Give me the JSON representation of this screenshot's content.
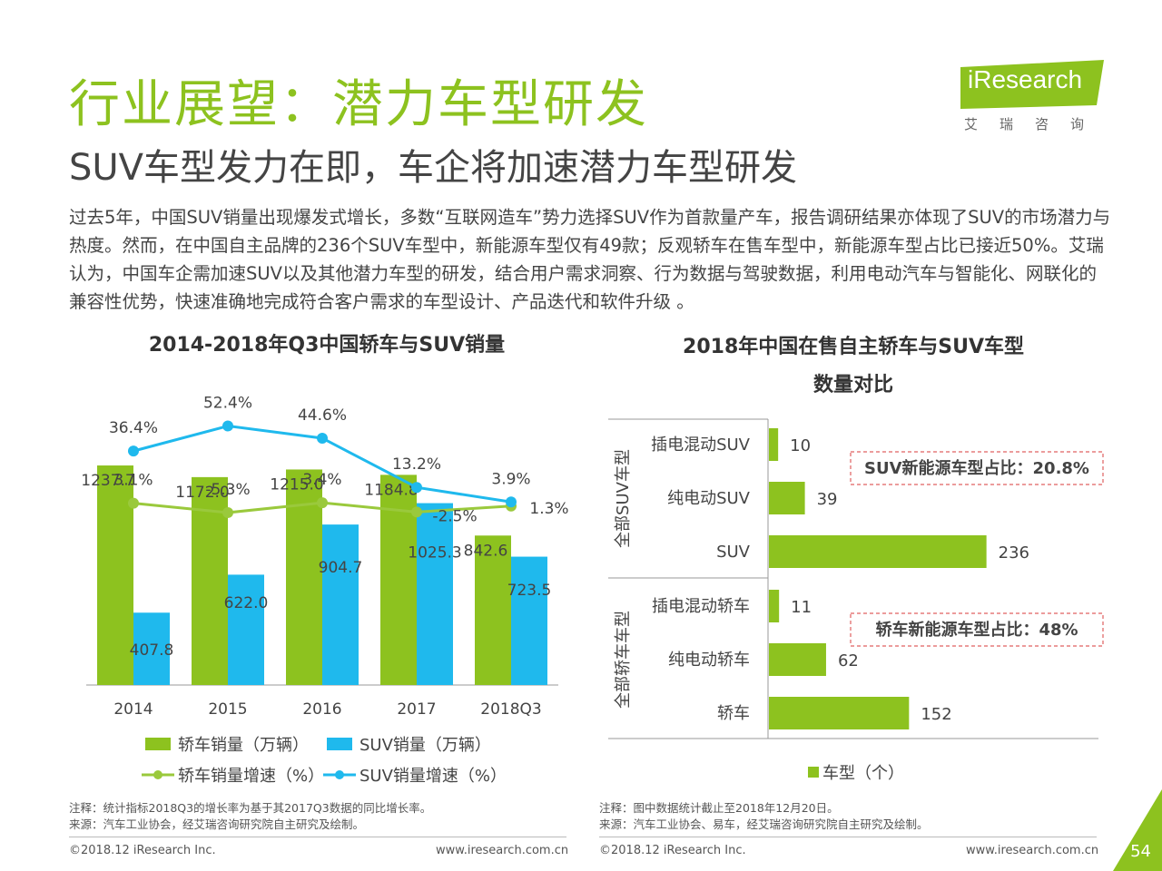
{
  "header": {
    "title": "行业展望：潜力车型研发",
    "subtitle": "SUV车型发力在即，车企将加速潜力车型研发",
    "body": "过去5年，中国SUV销量出现爆发式增长，多数“互联网造车”势力选择SUV作为首款量产车，报告调研结果亦体现了SUV的市场潜力与热度。然而，在中国自主品牌的236个SUV车型中，新能源车型仅有49款；反观轿车在售车型中，新能源车型占比已接近50%。艾瑞认为，中国车企需加速SUV以及其他潜力车型的研发，结合用户需求洞察、行为数据与驾驶数据，利用电动汽车与智能化、网联化的兼容性优势，快速准确地完成符合客户需求的车型设计、产品迭代和软件升级 。"
  },
  "logo": {
    "text": "iResearch",
    "sub": "艾瑞咨询",
    "color": "#8dc21f"
  },
  "chart_data": [
    {
      "type": "bar",
      "title": "2014-2018年Q3中国轿车与SUV销量",
      "categories": [
        "2014",
        "2015",
        "2016",
        "2017",
        "2018Q3"
      ],
      "series": [
        {
          "name": "轿车销量（万辆）",
          "type": "bar",
          "color": "#8dc21f",
          "values": [
            1237.7,
            1172.0,
            1215.0,
            1184.8,
            842.6
          ],
          "labels": [
            "1237.7",
            "1172.0",
            "1215.0",
            "1184.8",
            "842.6"
          ]
        },
        {
          "name": "SUV销量（万辆）",
          "type": "bar",
          "color": "#1fb9ed",
          "values": [
            407.8,
            622.0,
            904.7,
            1025.3,
            723.5
          ],
          "labels": [
            "407.8",
            "622.0",
            "904.7",
            "1025.3",
            "723.5"
          ]
        },
        {
          "name": "轿车销量增速（%）",
          "type": "line",
          "color": "#9ac93c",
          "values": [
            3.1,
            -5.3,
            3.4,
            -2.5,
            1.3
          ],
          "labels": [
            "3.1%",
            "-5.3%",
            "3.4%",
            "-2.5%",
            "1.3%"
          ]
        },
        {
          "name": "SUV销量增速（%）",
          "type": "line",
          "color": "#1fb9ed",
          "values": [
            36.4,
            52.4,
            44.6,
            13.2,
            3.9
          ],
          "labels": [
            "36.4%",
            "52.4%",
            "44.6%",
            "13.2%",
            "3.9%"
          ]
        }
      ],
      "ylim": [
        0,
        1500
      ],
      "grid": false,
      "legend": "bottom"
    },
    {
      "type": "bar",
      "orientation": "horizontal",
      "title_line1": "2018年中国在售自主轿车与SUV车型",
      "title_line2": "数量对比",
      "groups": [
        {
          "label": "全部SUV车型",
          "categories": [
            "插电混动SUV",
            "纯电动SUV",
            "SUV"
          ],
          "values": [
            10,
            39,
            236
          ],
          "labels": [
            "10",
            "39",
            "236"
          ],
          "annotation": "SUV新能源车型占比：20.8%"
        },
        {
          "label": "全部轿车车型",
          "categories": [
            "插电混动轿车",
            "纯电动轿车",
            "轿车"
          ],
          "values": [
            11,
            62,
            152
          ],
          "labels": [
            "11",
            "62",
            "152"
          ],
          "annotation": "轿车新能源车型占比：48%"
        }
      ],
      "series": [
        {
          "name": "车型（个）",
          "color": "#8dc21f"
        }
      ],
      "xlim": [
        0,
        260
      ],
      "legend": "bottom"
    }
  ],
  "notes": {
    "left_1": "注释：统计指标2018Q3的增长率为基于其2017Q3数据的同比增长率。",
    "left_2": "来源：汽车工业协会，经艾瑞咨询研究院自主研究及绘制。",
    "right_1": "注释：图中数据统计截止至2018年12月20日。",
    "right_2": "来源：汽车工业协会、易车，经艾瑞咨询研究院自主研究及绘制。"
  },
  "footer": {
    "copyright_left": "©2018.12 iResearch Inc.",
    "url_left": "www.iresearch.com.cn",
    "copyright_right": "©2018.12 iResearch Inc.",
    "url_right": "www.iresearch.com.cn",
    "page": "54"
  }
}
